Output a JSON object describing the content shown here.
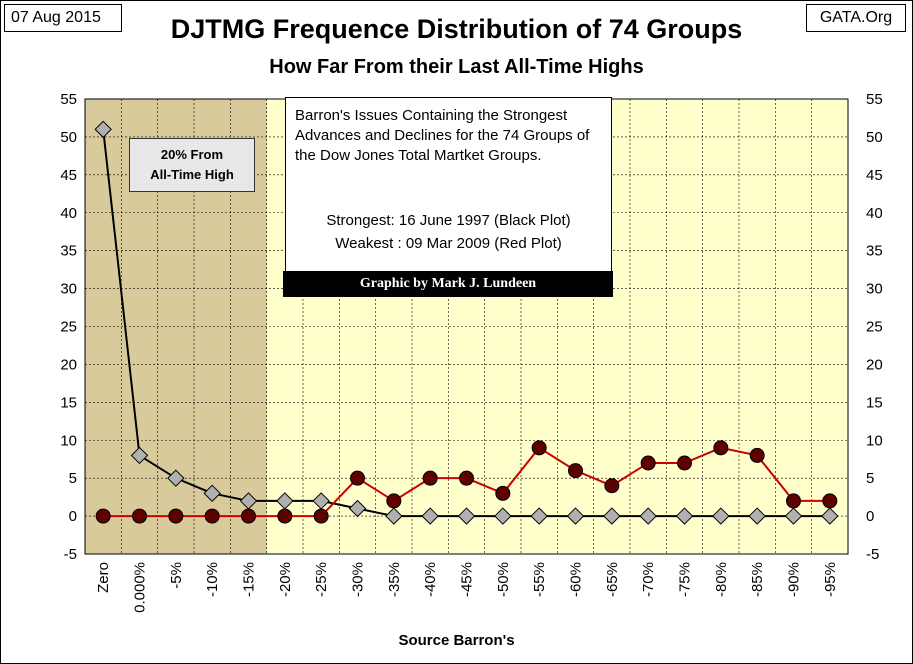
{
  "header": {
    "date": "07 Aug 2015",
    "source_site": "GATA.Org",
    "title": "DJTMG Frequence Distribution of 74 Groups",
    "subtitle": "How Far From their Last All-Time Highs"
  },
  "note": {
    "text": "Barron's Issues Containing the Strongest Advances and Declines for the 74 Groups of the Dow Jones Total Martket Groups.",
    "strongest": "Strongest: 16 June 1997 (Black Plot)",
    "weakest": "Weakest  : 09 Mar 2009  (Red Plot)"
  },
  "credit": "Graphic by Mark J. Lundeen",
  "zone_label": {
    "line1": "20% From",
    "line2": "All-Time High"
  },
  "colors": {
    "zone_fill": "#d9ca9c",
    "plot_fill": "#ffffcc",
    "strongest_line": "#000000",
    "strongest_marker": "#b0b0b0",
    "weakest_line": "#cc0000",
    "weakest_marker": "#5c0000"
  },
  "chart_data": {
    "type": "line",
    "xlabel": "Source Barron's",
    "ylabel": "",
    "categories": [
      "Zero",
      "0.000%",
      "-5%",
      "-10%",
      "-15%",
      "-20%",
      "-25%",
      "-30%",
      "-35%",
      "-40%",
      "-45%",
      "-50%",
      "-55%",
      "-60%",
      "-65%",
      "-70%",
      "-75%",
      "-80%",
      "-85%",
      "-90%",
      "-95%"
    ],
    "ylim": [
      -5,
      55
    ],
    "yticks": [
      -5,
      0,
      5,
      10,
      15,
      20,
      25,
      30,
      35,
      40,
      45,
      50,
      55
    ],
    "grid": true,
    "shaded_region_categories": [
      "Zero",
      "0.000%",
      "-5%",
      "-10%",
      "-15%"
    ],
    "series": [
      {
        "key": "strongest",
        "values": [
          51,
          8,
          5,
          3,
          2,
          2,
          2,
          1,
          0,
          0,
          0,
          0,
          0,
          0,
          0,
          0,
          0,
          0,
          0,
          0,
          0
        ]
      },
      {
        "key": "weakest",
        "values": [
          0,
          0,
          0,
          0,
          0,
          0,
          0,
          5,
          2,
          5,
          5,
          3,
          9,
          6,
          4,
          7,
          7,
          9,
          8,
          2,
          2
        ]
      }
    ]
  }
}
